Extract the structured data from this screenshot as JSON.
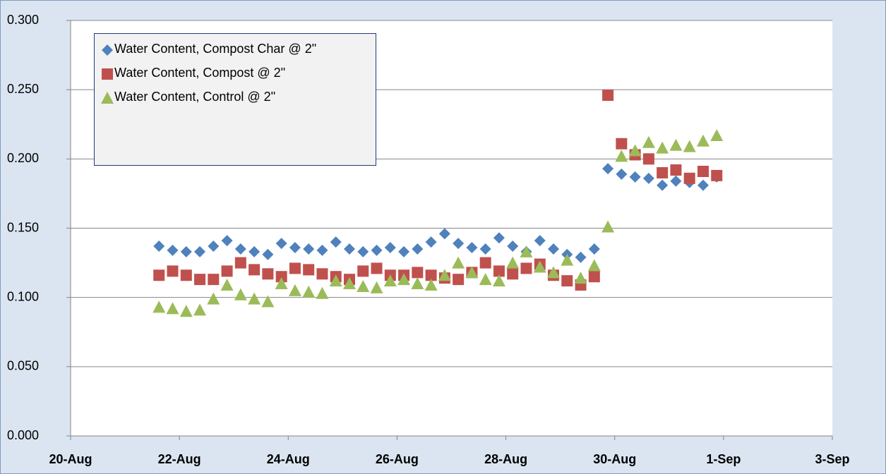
{
  "chart_data": {
    "type": "scatter",
    "xlim": [
      20,
      34
    ],
    "xticks": [
      {
        "value": 20,
        "label": "20-Aug"
      },
      {
        "value": 22,
        "label": "22-Aug"
      },
      {
        "value": 24,
        "label": "24-Aug"
      },
      {
        "value": 26,
        "label": "26-Aug"
      },
      {
        "value": 28,
        "label": "28-Aug"
      },
      {
        "value": 30,
        "label": "30-Aug"
      },
      {
        "value": 32,
        "label": "1-Sep"
      },
      {
        "value": 34,
        "label": "3-Sep"
      }
    ],
    "ylim": [
      0,
      0.3
    ],
    "yticks": [
      {
        "value": 0,
        "label": "0.000"
      },
      {
        "value": 0.05,
        "label": "0.050"
      },
      {
        "value": 0.1,
        "label": "0.100"
      },
      {
        "value": 0.15,
        "label": "0.150"
      },
      {
        "value": 0.2,
        "label": "0.200"
      },
      {
        "value": 0.25,
        "label": "0.250"
      },
      {
        "value": 0.3,
        "label": "0.300"
      }
    ],
    "grid": true,
    "legend": "top-left",
    "series": [
      {
        "name": "Water Content, Compost Char @ 2\"",
        "color": "#4f81bd",
        "marker": "diamond",
        "x": [
          21.625,
          21.875,
          22.125,
          22.375,
          22.625,
          22.875,
          23.125,
          23.375,
          23.625,
          23.875,
          24.125,
          24.375,
          24.625,
          24.875,
          25.125,
          25.375,
          25.625,
          25.875,
          26.125,
          26.375,
          26.625,
          26.875,
          27.125,
          27.375,
          27.625,
          27.875,
          28.125,
          28.375,
          28.625,
          28.875,
          29.125,
          29.375,
          29.625,
          29.875,
          30.125,
          30.375,
          30.625,
          30.875,
          31.125,
          31.375,
          31.625,
          31.875
        ],
        "values": [
          0.137,
          0.134,
          0.133,
          0.133,
          0.137,
          0.141,
          0.135,
          0.133,
          0.131,
          0.139,
          0.136,
          0.135,
          0.134,
          0.14,
          0.135,
          0.133,
          0.134,
          0.136,
          0.133,
          0.135,
          0.14,
          0.146,
          0.139,
          0.136,
          0.135,
          0.143,
          0.137,
          0.133,
          0.141,
          0.135,
          0.131,
          0.129,
          0.135,
          0.193,
          0.189,
          0.187,
          0.186,
          0.181,
          0.184,
          0.183,
          0.181,
          0.187
        ]
      },
      {
        "name": "Water Content, Compost @ 2\"",
        "color": "#c0504d",
        "marker": "square",
        "x": [
          21.625,
          21.875,
          22.125,
          22.375,
          22.625,
          22.875,
          23.125,
          23.375,
          23.625,
          23.875,
          24.125,
          24.375,
          24.625,
          24.875,
          25.125,
          25.375,
          25.625,
          25.875,
          26.125,
          26.375,
          26.625,
          26.875,
          27.125,
          27.375,
          27.625,
          27.875,
          28.125,
          28.375,
          28.625,
          28.875,
          29.125,
          29.375,
          29.625,
          29.875,
          30.125,
          30.375,
          30.625,
          30.875,
          31.125,
          31.375,
          31.625,
          31.875
        ],
        "values": [
          0.116,
          0.119,
          0.116,
          0.113,
          0.113,
          0.119,
          0.125,
          0.12,
          0.117,
          0.115,
          0.121,
          0.12,
          0.117,
          0.115,
          0.113,
          0.119,
          0.121,
          0.116,
          0.116,
          0.118,
          0.116,
          0.114,
          0.113,
          0.118,
          0.125,
          0.119,
          0.117,
          0.121,
          0.124,
          0.116,
          0.112,
          0.109,
          0.115,
          0.246,
          0.211,
          0.203,
          0.2,
          0.19,
          0.192,
          0.186,
          0.191,
          0.188
        ]
      },
      {
        "name": "Water Content,  Control @ 2\"",
        "color": "#9bbb59",
        "marker": "triangle",
        "x": [
          21.625,
          21.875,
          22.125,
          22.375,
          22.625,
          22.875,
          23.125,
          23.375,
          23.625,
          23.875,
          24.125,
          24.375,
          24.625,
          24.875,
          25.125,
          25.375,
          25.625,
          25.875,
          26.125,
          26.375,
          26.625,
          26.875,
          27.125,
          27.375,
          27.625,
          27.875,
          28.125,
          28.375,
          28.625,
          28.875,
          29.125,
          29.375,
          29.625,
          29.875,
          30.125,
          30.375,
          30.625,
          30.875,
          31.125,
          31.375,
          31.625,
          31.875
        ],
        "values": [
          0.093,
          0.092,
          0.09,
          0.091,
          0.099,
          0.109,
          0.102,
          0.099,
          0.097,
          0.11,
          0.105,
          0.104,
          0.103,
          0.112,
          0.11,
          0.108,
          0.107,
          0.112,
          0.113,
          0.11,
          0.109,
          0.116,
          0.125,
          0.118,
          0.113,
          0.112,
          0.125,
          0.133,
          0.122,
          0.118,
          0.127,
          0.114,
          0.123,
          0.151,
          0.202,
          0.206,
          0.212,
          0.208,
          0.21,
          0.209,
          0.213,
          0.217
        ]
      }
    ]
  }
}
